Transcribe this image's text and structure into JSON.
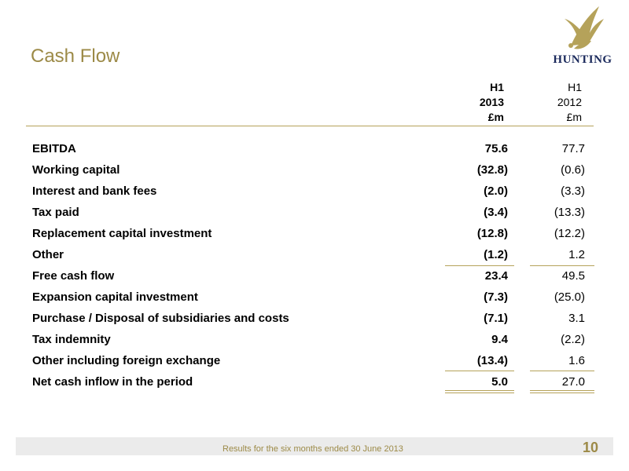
{
  "title": "Cash Flow",
  "logo": {
    "text": "HUNTING"
  },
  "columns": [
    {
      "line1": "H1",
      "line2": "2013",
      "line3": "£m"
    },
    {
      "line1": "H1",
      "line2": "2012",
      "line3": "£m"
    }
  ],
  "rows": [
    {
      "label": "EBITDA",
      "h1_2013": "75.6",
      "h1_2012": "77.7"
    },
    {
      "label": "Working capital",
      "h1_2013": "(32.8)",
      "h1_2012": "(0.6)"
    },
    {
      "label": "Interest  and bank fees",
      "h1_2013": "(2.0)",
      "h1_2012": "(3.3)"
    },
    {
      "label": "Tax paid",
      "h1_2013": "(3.4)",
      "h1_2012": "(13.3)"
    },
    {
      "label": "Replacement capital investment",
      "h1_2013": "(12.8)",
      "h1_2012": "(12.2)"
    },
    {
      "label": "Other",
      "h1_2013": "(1.2)",
      "h1_2012": "1.2"
    },
    {
      "label": "Free cash flow",
      "h1_2013": "23.4",
      "h1_2012": "49.5"
    },
    {
      "label": "Expansion capital investment",
      "h1_2013": "(7.3)",
      "h1_2012": "(25.0)"
    },
    {
      "label": "Purchase / Disposal of subsidiaries and costs",
      "h1_2013": "(7.1)",
      "h1_2012": "3.1"
    },
    {
      "label": "Tax indemnity",
      "h1_2013": "9.4",
      "h1_2012": "(2.2)"
    },
    {
      "label": "Other including foreign exchange",
      "h1_2013": "(13.4)",
      "h1_2012": "1.6"
    },
    {
      "label": "Net cash inflow in the period",
      "h1_2013": "5.0",
      "h1_2012": "27.0"
    }
  ],
  "footer": {
    "text": "Results for the six months ended 30 June 2013",
    "page": "10"
  },
  "colors": {
    "accent": "#9c8a47",
    "rule": "#b5a25a",
    "logo": "#1b2a5c"
  }
}
